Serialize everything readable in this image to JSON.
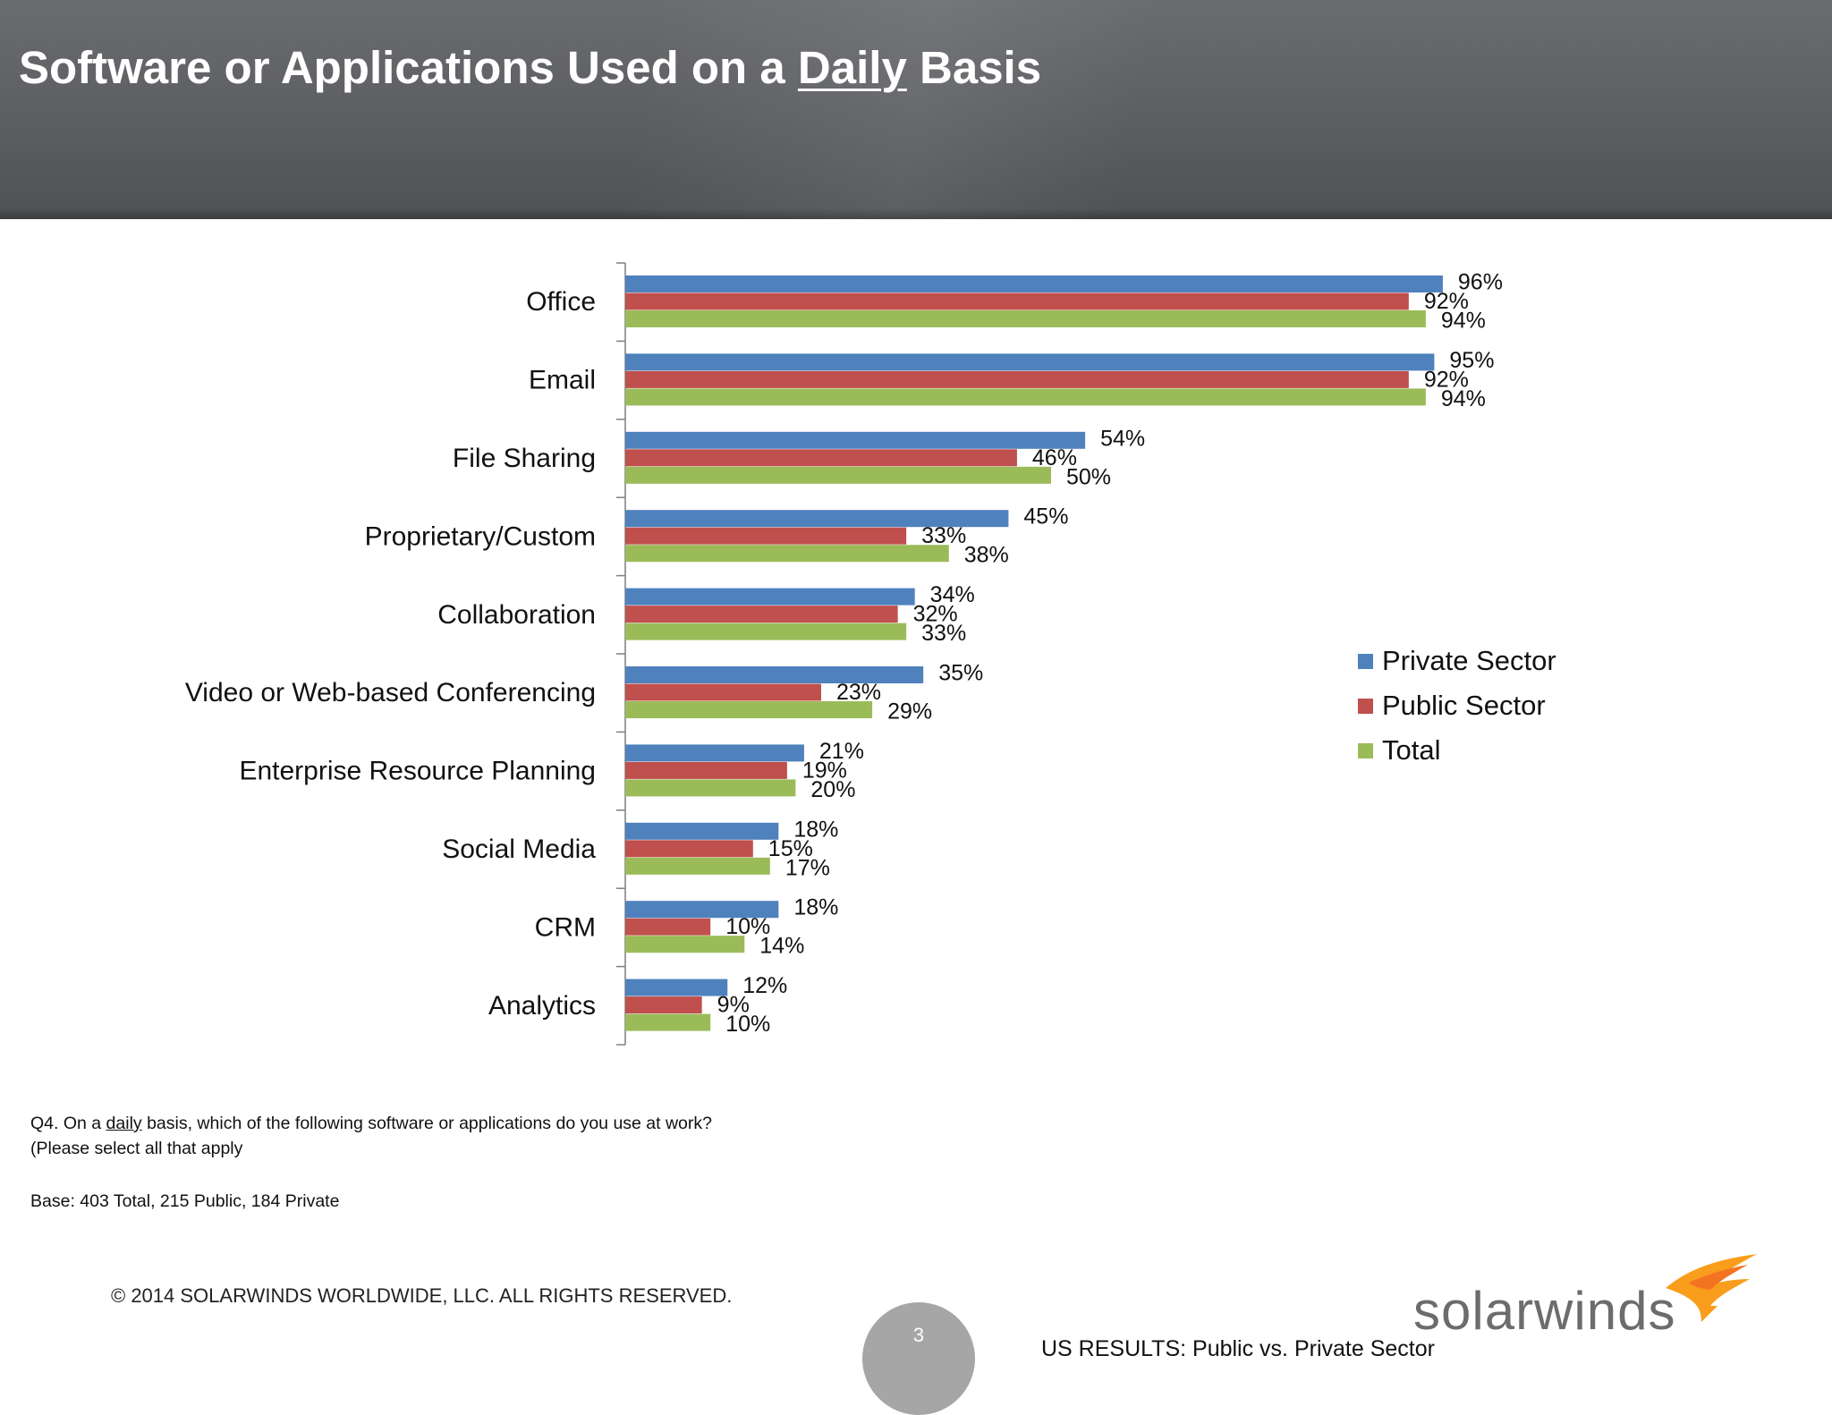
{
  "header": {
    "title_before": "Software or Applications Used on a ",
    "title_emph": "Daily",
    "title_after": " Basis"
  },
  "chart_data": {
    "type": "bar",
    "orientation": "horizontal",
    "categories": [
      "Office",
      "Email",
      "File Sharing",
      "Proprietary/Custom",
      "Collaboration",
      "Video or Web-based Conferencing",
      "Enterprise Resource Planning",
      "Social Media",
      "CRM",
      "Analytics"
    ],
    "series": [
      {
        "name": "Private Sector",
        "values": [
          96,
          95,
          54,
          45,
          34,
          35,
          21,
          18,
          18,
          12
        ],
        "color": "#4f81bd"
      },
      {
        "name": "Public Sector",
        "values": [
          92,
          92,
          46,
          33,
          32,
          23,
          19,
          15,
          10,
          9
        ],
        "color": "#c0504d"
      },
      {
        "name": "Total",
        "values": [
          94,
          94,
          50,
          38,
          33,
          29,
          20,
          17,
          14,
          10
        ],
        "color": "#9bbb59"
      }
    ],
    "value_suffix": "%",
    "xlim": [
      0,
      100
    ],
    "grid": false,
    "legend_position": "right"
  },
  "notes": {
    "question_before": "Q4. On a ",
    "question_emph": "daily",
    "question_after": " basis, which of the following software or applications do you use at work?  (Please select all that apply",
    "base": "Base:  403  Total, 215 Public, 184 Private"
  },
  "footer": {
    "copyright": "© 2014 SOLARWINDS WORLDWIDE, LLC.  ALL RIGHTS RESERVED.",
    "page_number": "3",
    "section": "US RESULTS:  Public vs. Private Sector",
    "logo_text": "solarwinds"
  }
}
